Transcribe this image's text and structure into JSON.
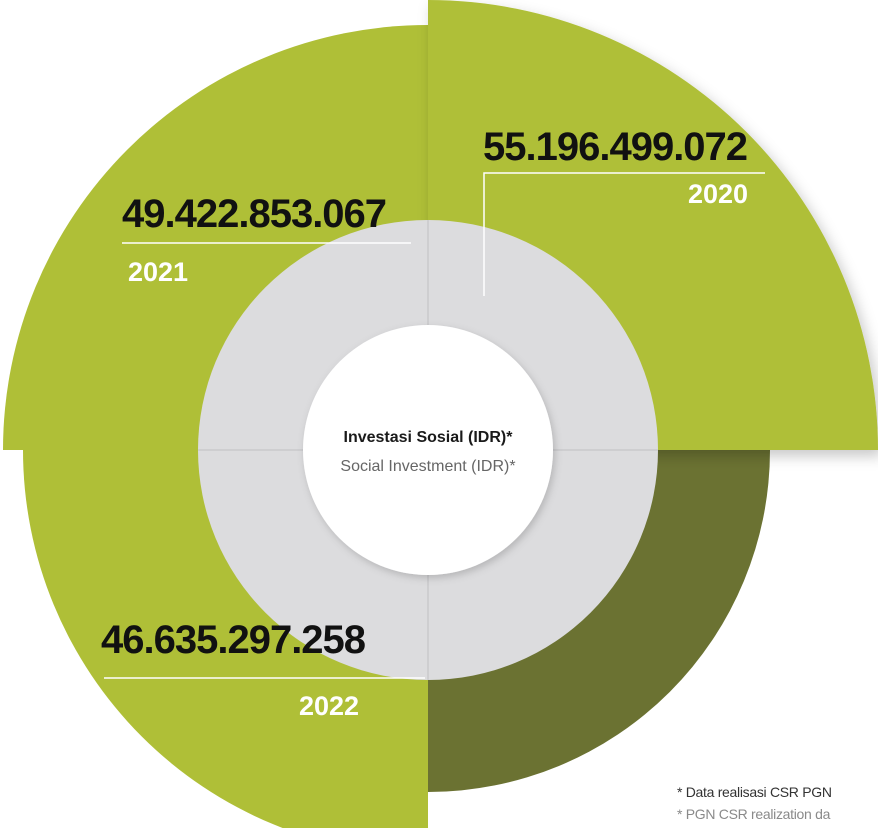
{
  "colors": {
    "segment_light": "#afbf37",
    "segment_dark": "#6b7232",
    "inner_ring": "#dcdcde",
    "center_disc": "#ffffff",
    "value_text": "#111111",
    "year_text": "#ffffff"
  },
  "center": {
    "title": "Investasi Sosial (IDR)*",
    "subtitle": "Social Investment (IDR)*"
  },
  "footnotes": {
    "id": "* Data realisasi CSR PGN",
    "en": "* PGN CSR realization da"
  },
  "chart_data": {
    "type": "pie",
    "variant": "radial-bar (rose) chart, four quadrants",
    "title": "Investasi Sosial (IDR)*",
    "subtitle": "Social Investment (IDR)*",
    "segments": [
      {
        "year": "2020",
        "value": 55196499072,
        "label": "55.196.499.072",
        "quadrant": "top-right"
      },
      {
        "year": "2021",
        "value": 49422853067,
        "label": "49.422.853.067",
        "quadrant": "top-left"
      },
      {
        "year": "2022",
        "value": 46635297258,
        "label": "46.635.297.258",
        "quadrant": "bottom-left"
      },
      {
        "year": "",
        "value": null,
        "label": "",
        "quadrant": "bottom-right"
      }
    ]
  }
}
